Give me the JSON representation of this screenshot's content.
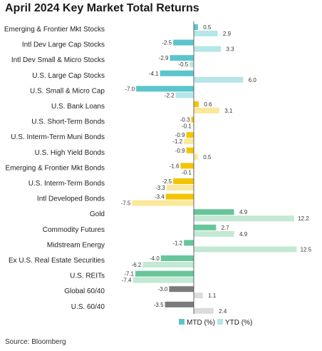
{
  "chart_data": {
    "type": "bar",
    "orientation": "horizontal",
    "title": "April 2024 Key Market Total Returns",
    "source": "Source: Bloomberg",
    "categories": [
      "Emerging & Frontier Mkt Stocks",
      "Intl Dev Large Cap Stocks",
      "Intl Dev Small & Micro Stocks",
      "U.S. Large Cap Stocks",
      "U.S. Small & Micro Cap",
      "U.S. Bank Loans",
      "U.S. Short-Term Bonds",
      "U.S. Interm-Term Muni Bonds",
      "U.S. High Yield Bonds",
      "Emerging & Frontier Mkt Bonds",
      "U.S. Interm-Term Bonds",
      "Intl Developed Bonds",
      "Gold",
      "Commodity Futures",
      "Midstream Energy",
      "Ex U.S. Real Estate Securities",
      "U.S. REITs",
      "Global 60/40",
      "U.S. 60/40"
    ],
    "series": [
      {
        "name": "MTD (%)",
        "values": [
          0.5,
          -2.5,
          -2.9,
          -4.1,
          -7.0,
          0.6,
          -0.3,
          -0.9,
          -0.9,
          -1.6,
          -2.5,
          -3.4,
          4.9,
          2.7,
          -1.2,
          -4.0,
          -7.1,
          -3.0,
          -3.5
        ]
      },
      {
        "name": "YTD (%)",
        "values": [
          2.9,
          3.3,
          -0.5,
          6.0,
          -2.2,
          3.1,
          -0.1,
          -1.2,
          0.5,
          -0.1,
          -3.3,
          -7.5,
          12.2,
          4.9,
          12.5,
          -6.2,
          -7.4,
          1.1,
          2.4
        ]
      }
    ],
    "value_labels": {
      "MTD (%)": [
        "0.5",
        "-2.5",
        "-2.9",
        "-4.1",
        "-7.0",
        "0.6",
        "-0.3",
        "-0.9",
        "-0.9",
        "-1.6",
        "-2.5",
        "-3.4",
        "4.9",
        "2.7",
        "-1.2",
        "-4.0",
        "-7.1",
        "-3.0",
        "-3.5"
      ],
      "YTD (%)": [
        "2.9",
        "3.3",
        "-0.5",
        "6.0",
        "-2.2",
        "3.1",
        "-0.1",
        "-1.2",
        "0.5",
        "-0.1",
        "-3.3",
        "-7.5",
        "12.2",
        "4.9",
        "12.5",
        "-6.2",
        "-7.4",
        "1.1",
        "2.4"
      ]
    },
    "group_colors": {
      "equity": {
        "MTD (%)": "#5bc5cc",
        "YTD (%)": "#b5e6e8"
      },
      "fixed_income": {
        "MTD (%)": "#f5c400",
        "YTD (%)": "#fbe89a"
      },
      "real_assets": {
        "MTD (%)": "#66c69a",
        "YTD (%)": "#c3e8d4"
      },
      "balanced": {
        "MTD (%)": "#7a7a7a",
        "YTD (%)": "#dcdcdc"
      }
    },
    "category_groups": [
      "equity",
      "equity",
      "equity",
      "equity",
      "equity",
      "fixed_income",
      "fixed_income",
      "fixed_income",
      "fixed_income",
      "fixed_income",
      "fixed_income",
      "fixed_income",
      "real_assets",
      "real_assets",
      "real_assets",
      "real_assets",
      "real_assets",
      "balanced",
      "balanced"
    ],
    "legend": [
      "MTD (%)",
      "YTD (%)"
    ],
    "legend_position": "bottom-right",
    "grid": false
  }
}
